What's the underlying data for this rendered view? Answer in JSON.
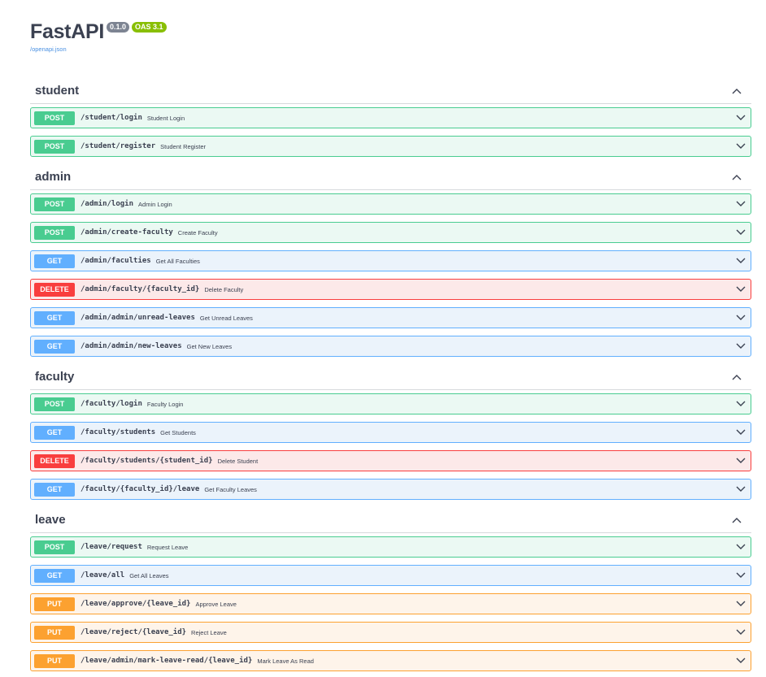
{
  "header": {
    "title": "FastAPI",
    "version": "0.1.0",
    "oas": "OAS 3.1",
    "spec_link": "/openapi.json"
  },
  "sections": [
    {
      "name": "student",
      "ops": [
        {
          "method": "POST",
          "path": "/student/login",
          "summary": "Student Login"
        },
        {
          "method": "POST",
          "path": "/student/register",
          "summary": "Student Register"
        }
      ]
    },
    {
      "name": "admin",
      "ops": [
        {
          "method": "POST",
          "path": "/admin/login",
          "summary": "Admin Login"
        },
        {
          "method": "POST",
          "path": "/admin/create-faculty",
          "summary": "Create Faculty"
        },
        {
          "method": "GET",
          "path": "/admin/faculties",
          "summary": "Get All Faculties"
        },
        {
          "method": "DELETE",
          "path": "/admin/faculty/{faculty_id}",
          "summary": "Delete Faculty"
        },
        {
          "method": "GET",
          "path": "/admin/admin/unread-leaves",
          "summary": "Get Unread Leaves"
        },
        {
          "method": "GET",
          "path": "/admin/admin/new-leaves",
          "summary": "Get New Leaves"
        }
      ]
    },
    {
      "name": "faculty",
      "ops": [
        {
          "method": "POST",
          "path": "/faculty/login",
          "summary": "Faculty Login"
        },
        {
          "method": "GET",
          "path": "/faculty/students",
          "summary": "Get Students"
        },
        {
          "method": "DELETE",
          "path": "/faculty/students/{student_id}",
          "summary": "Delete Student"
        },
        {
          "method": "GET",
          "path": "/faculty/{faculty_id}/leave",
          "summary": "Get Faculty Leaves"
        }
      ]
    },
    {
      "name": "leave",
      "ops": [
        {
          "method": "POST",
          "path": "/leave/request",
          "summary": "Request Leave"
        },
        {
          "method": "GET",
          "path": "/leave/all",
          "summary": "Get All Leaves"
        },
        {
          "method": "PUT",
          "path": "/leave/approve/{leave_id}",
          "summary": "Approve Leave"
        },
        {
          "method": "PUT",
          "path": "/leave/reject/{leave_id}",
          "summary": "Reject Leave"
        },
        {
          "method": "PUT",
          "path": "/leave/admin/mark-leave-read/{leave_id}",
          "summary": "Mark Leave As Read"
        }
      ]
    }
  ],
  "colors": {
    "post": "#49cc90",
    "get": "#61affe",
    "delete": "#f93e3e",
    "put": "#fca130",
    "text": "#3b4151",
    "link": "#4990e2",
    "oas_badge": "#89bf04",
    "version_badge": "#7d8492"
  },
  "icons": {
    "section_toggle": "chevron-up-icon",
    "op_toggle": "chevron-down-icon"
  }
}
